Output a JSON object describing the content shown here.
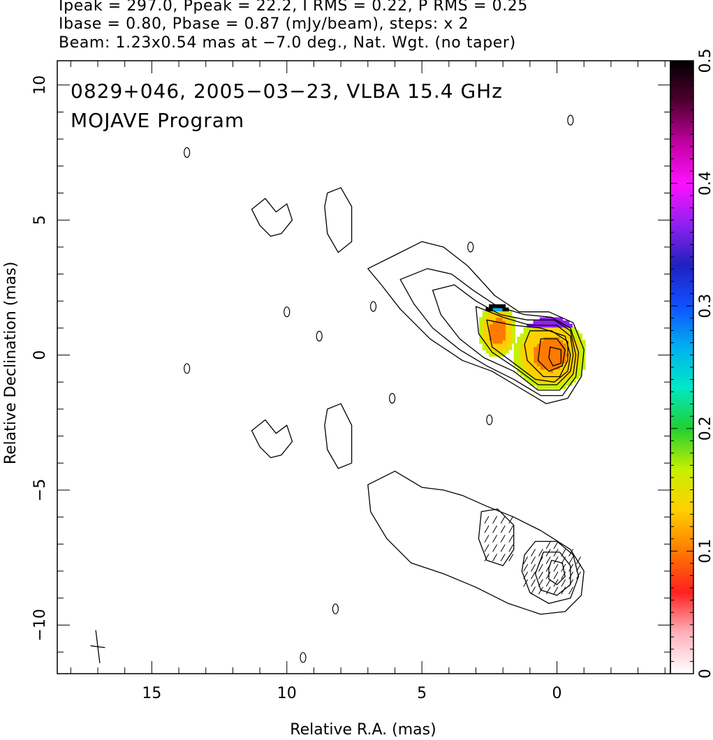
{
  "header": {
    "line1": "Ipeak = 297.0, Ppeak = 22.2, I RMS = 0.22, P RMS = 0.25",
    "line2": "Ibase = 0.80, Pbase = 0.87 (mJy/beam), steps: x 2",
    "line3": "Beam: 1.23x0.54 mas at −7.0 deg., Nat. Wgt. (no taper)"
  },
  "chart_data": {
    "type": "contour",
    "title": "0829+046, 2005−03−23, VLBA 15.4 GHz",
    "subtitle": "MOJAVE Program",
    "xlabel": "Relative R.A. (mas)",
    "ylabel": "Relative Declination (mas)",
    "xlim": [
      18.5,
      -4.2
    ],
    "ylim": [
      -11.8,
      10.9
    ],
    "x_ticks": [
      15,
      10,
      5,
      0
    ],
    "x_tick_labels": [
      "15",
      "10",
      "5",
      "0"
    ],
    "y_ticks": [
      10,
      5,
      0,
      -5,
      -10
    ],
    "y_tick_labels": [
      "10",
      "5",
      "0",
      "−5",
      "−10"
    ],
    "beam": {
      "major_mas": 1.23,
      "minor_mas": 0.54,
      "pa_deg": -7.0
    },
    "colorbar": {
      "range": [
        0,
        0.5
      ],
      "tick_values": [
        0,
        0.1,
        0.2,
        0.3,
        0.4,
        0.5
      ],
      "tick_labels": [
        "0",
        "0.1",
        "0.2",
        "0.3",
        "0.4",
        "0.5"
      ],
      "colors": [
        "#ffffff",
        "#ffb0b8",
        "#ff2020",
        "#ff7a00",
        "#ffd000",
        "#c8f000",
        "#20d030",
        "#00e8c8",
        "#00b0f0",
        "#1050ff",
        "#2020c0",
        "#9020f0",
        "#ff10ff",
        "#c000a0",
        "#500030",
        "#000000"
      ]
    },
    "series": [
      {
        "name": "Total intensity contours (upper panel)",
        "contours": [
          [
            [
              7.0,
              3.2
            ],
            [
              6.0,
              3.7
            ],
            [
              5.0,
              4.2
            ],
            [
              4.2,
              4.0
            ],
            [
              3.3,
              3.3
            ],
            [
              2.3,
              2.2
            ],
            [
              1.4,
              1.6
            ],
            [
              0.3,
              1.6
            ],
            [
              -0.6,
              1.2
            ],
            [
              -1.0,
              0.2
            ],
            [
              -0.9,
              -0.8
            ],
            [
              -0.4,
              -1.6
            ],
            [
              0.4,
              -1.8
            ],
            [
              1.4,
              -1.2
            ],
            [
              2.4,
              -0.6
            ],
            [
              3.5,
              -0.2
            ],
            [
              4.7,
              0.6
            ],
            [
              5.8,
              1.7
            ],
            [
              6.5,
              2.6
            ],
            [
              7.0,
              3.2
            ]
          ],
          [
            [
              5.8,
              2.8
            ],
            [
              4.8,
              3.2
            ],
            [
              3.9,
              3.0
            ],
            [
              3.1,
              2.4
            ],
            [
              2.2,
              1.8
            ],
            [
              1.2,
              1.5
            ],
            [
              0.2,
              1.4
            ],
            [
              -0.5,
              1.0
            ],
            [
              -0.8,
              0.1
            ],
            [
              -0.7,
              -0.8
            ],
            [
              -0.2,
              -1.5
            ],
            [
              0.6,
              -1.5
            ],
            [
              1.6,
              -0.9
            ],
            [
              2.6,
              -0.4
            ],
            [
              3.6,
              0.2
            ],
            [
              4.6,
              1.0
            ],
            [
              5.3,
              1.9
            ],
            [
              5.8,
              2.8
            ]
          ],
          [
            [
              4.6,
              2.4
            ],
            [
              3.8,
              2.6
            ],
            [
              3.0,
              2.0
            ],
            [
              2.1,
              1.5
            ],
            [
              1.1,
              1.3
            ],
            [
              0.1,
              1.3
            ],
            [
              -0.5,
              0.9
            ],
            [
              -0.7,
              0.0
            ],
            [
              -0.6,
              -0.7
            ],
            [
              -0.1,
              -1.3
            ],
            [
              0.7,
              -1.3
            ],
            [
              1.6,
              -0.6
            ],
            [
              2.7,
              -0.1
            ],
            [
              3.6,
              0.6
            ],
            [
              4.3,
              1.5
            ],
            [
              4.6,
              2.4
            ]
          ],
          [
            [
              3.0,
              1.8
            ],
            [
              2.0,
              1.4
            ],
            [
              1.0,
              1.1
            ],
            [
              0.0,
              1.1
            ],
            [
              -0.5,
              0.7
            ],
            [
              -0.6,
              0.0
            ],
            [
              -0.5,
              -0.6
            ],
            [
              0.0,
              -1.1
            ],
            [
              0.7,
              -1.1
            ],
            [
              1.5,
              -0.5
            ],
            [
              2.4,
              0.1
            ],
            [
              2.9,
              0.8
            ],
            [
              3.0,
              1.8
            ]
          ],
          [
            [
              2.6,
              1.3
            ],
            [
              1.6,
              1.1
            ],
            [
              0.6,
              1.0
            ],
            [
              -0.3,
              0.7
            ],
            [
              -0.5,
              0.0
            ],
            [
              -0.4,
              -0.6
            ],
            [
              0.1,
              -1.0
            ],
            [
              0.8,
              -0.9
            ],
            [
              1.6,
              -0.3
            ],
            [
              2.4,
              0.3
            ],
            [
              2.6,
              1.3
            ]
          ],
          [
            [
              1.0,
              0.9
            ],
            [
              0.2,
              0.9
            ],
            [
              -0.4,
              0.5
            ],
            [
              -0.4,
              -0.2
            ],
            [
              -0.1,
              -0.8
            ],
            [
              0.5,
              -0.8
            ],
            [
              1.1,
              -0.2
            ],
            [
              1.2,
              0.4
            ],
            [
              1.0,
              0.9
            ]
          ],
          [
            [
              0.6,
              0.6
            ],
            [
              0.0,
              0.6
            ],
            [
              -0.3,
              0.2
            ],
            [
              -0.2,
              -0.4
            ],
            [
              0.3,
              -0.6
            ],
            [
              0.7,
              -0.2
            ],
            [
              0.6,
              0.6
            ]
          ],
          [
            [
              0.25,
              0.3
            ],
            [
              -0.15,
              0.2
            ],
            [
              -0.15,
              -0.3
            ],
            [
              0.15,
              -0.4
            ],
            [
              0.3,
              -0.1
            ],
            [
              0.25,
              0.3
            ]
          ],
          [
            [
              8.5,
              6.0
            ],
            [
              8.0,
              6.2
            ],
            [
              7.6,
              5.5
            ],
            [
              7.6,
              4.2
            ],
            [
              8.1,
              3.8
            ],
            [
              8.5,
              4.5
            ],
            [
              8.6,
              5.5
            ],
            [
              8.5,
              6.0
            ]
          ],
          [
            [
              11.3,
              5.4
            ],
            [
              10.8,
              5.8
            ],
            [
              10.4,
              5.3
            ],
            [
              10.0,
              5.6
            ],
            [
              9.8,
              5.0
            ],
            [
              10.2,
              4.5
            ],
            [
              10.6,
              4.4
            ],
            [
              11.0,
              4.8
            ],
            [
              11.3,
              5.4
            ]
          ]
        ]
      },
      {
        "name": "Total intensity contours with polarization vectors (lower panel)",
        "contours": [
          [
            [
              7.0,
              -4.8
            ],
            [
              6.0,
              -4.3
            ],
            [
              5.0,
              -4.9
            ],
            [
              4.2,
              -5.0
            ],
            [
              3.5,
              -5.2
            ],
            [
              2.6,
              -5.6
            ],
            [
              1.6,
              -6.0
            ],
            [
              0.6,
              -6.5
            ],
            [
              -0.5,
              -7.2
            ],
            [
              -1.0,
              -8.0
            ],
            [
              -0.9,
              -8.9
            ],
            [
              -0.3,
              -9.5
            ],
            [
              0.6,
              -9.6
            ],
            [
              1.8,
              -9.2
            ],
            [
              3.0,
              -8.6
            ],
            [
              4.2,
              -8.1
            ],
            [
              5.4,
              -7.7
            ],
            [
              6.3,
              -6.8
            ],
            [
              6.9,
              -5.8
            ],
            [
              7.0,
              -4.8
            ]
          ],
          [
            [
              2.8,
              -5.8
            ],
            [
              2.2,
              -5.7
            ],
            [
              1.6,
              -6.3
            ],
            [
              1.6,
              -7.2
            ],
            [
              2.0,
              -7.8
            ],
            [
              2.6,
              -7.6
            ],
            [
              2.9,
              -6.8
            ],
            [
              2.8,
              -5.8
            ]
          ],
          [
            [
              0.8,
              -6.9
            ],
            [
              0.0,
              -6.9
            ],
            [
              -0.6,
              -7.4
            ],
            [
              -0.8,
              -8.2
            ],
            [
              -0.5,
              -9.0
            ],
            [
              0.3,
              -9.2
            ],
            [
              1.0,
              -8.8
            ],
            [
              1.3,
              -8.0
            ],
            [
              1.2,
              -7.4
            ],
            [
              0.8,
              -6.9
            ]
          ],
          [
            [
              0.5,
              -7.3
            ],
            [
              -0.1,
              -7.3
            ],
            [
              -0.5,
              -7.8
            ],
            [
              -0.5,
              -8.5
            ],
            [
              0.0,
              -8.9
            ],
            [
              0.6,
              -8.7
            ],
            [
              0.8,
              -8.1
            ],
            [
              0.5,
              -7.3
            ]
          ],
          [
            [
              0.2,
              -7.6
            ],
            [
              -0.2,
              -7.7
            ],
            [
              -0.3,
              -8.2
            ],
            [
              0.0,
              -8.5
            ],
            [
              0.3,
              -8.3
            ],
            [
              0.3,
              -7.9
            ],
            [
              0.2,
              -7.6
            ]
          ],
          [
            [
              8.5,
              -2.0
            ],
            [
              8.0,
              -1.8
            ],
            [
              7.6,
              -2.6
            ],
            [
              7.6,
              -4.0
            ],
            [
              8.1,
              -4.2
            ],
            [
              8.5,
              -3.5
            ],
            [
              8.6,
              -2.6
            ],
            [
              8.5,
              -2.0
            ]
          ],
          [
            [
              11.3,
              -2.8
            ],
            [
              10.8,
              -2.4
            ],
            [
              10.4,
              -2.9
            ],
            [
              10.0,
              -2.6
            ],
            [
              9.8,
              -3.2
            ],
            [
              10.2,
              -3.7
            ],
            [
              10.6,
              -3.8
            ],
            [
              11.0,
              -3.4
            ],
            [
              11.3,
              -2.8
            ]
          ]
        ]
      }
    ]
  }
}
